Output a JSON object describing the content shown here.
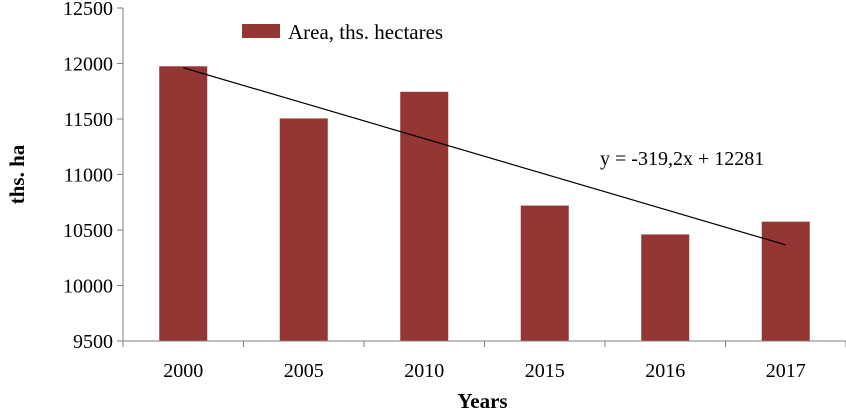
{
  "chart_data": {
    "type": "bar",
    "categories": [
      "2000",
      "2005",
      "2010",
      "2015",
      "2016",
      "2017"
    ],
    "series": [
      {
        "name": "Area, ths. hectares",
        "values": [
          11975,
          11505,
          11745,
          10720,
          10460,
          10575
        ],
        "color": "#943634"
      }
    ],
    "xlabel": "Years",
    "ylabel": "ths. ha",
    "ylim": [
      9500,
      12500
    ],
    "yticks": [
      9500,
      10000,
      10500,
      11000,
      11500,
      12000,
      12500
    ],
    "grid": false,
    "legend_position": "top-left",
    "trendline": {
      "type": "linear",
      "slope": -319.2,
      "intercept": 12281,
      "equation_label": "y = -319,2x + 12281"
    }
  }
}
